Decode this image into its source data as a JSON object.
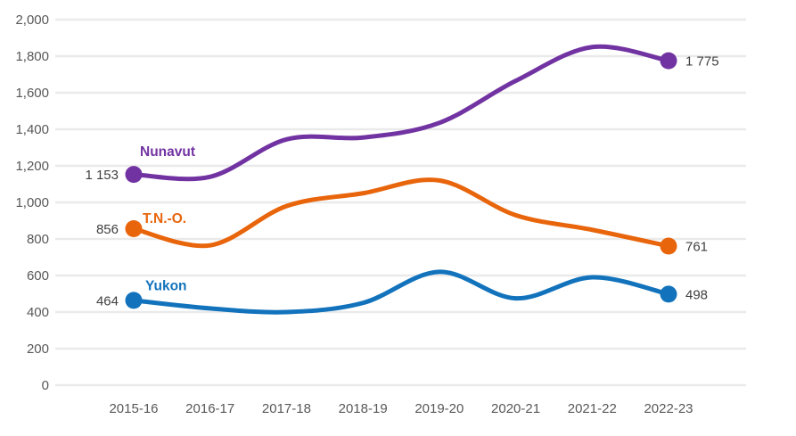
{
  "chart_data": {
    "type": "line",
    "title": "",
    "xlabel": "",
    "ylabel": "",
    "x_categories": [
      "2015-16",
      "2016-17",
      "2017-18",
      "2018-19",
      "2019-20",
      "2020-21",
      "2021-22",
      "2022-23"
    ],
    "ylim": [
      0,
      2000
    ],
    "y_ticks": [
      {
        "value": 0,
        "label": "0"
      },
      {
        "value": 200,
        "label": "200"
      },
      {
        "value": 400,
        "label": "400"
      },
      {
        "value": 600,
        "label": "600"
      },
      {
        "value": 800,
        "label": "800"
      },
      {
        "value": 1000,
        "label": "1,000"
      },
      {
        "value": 1200,
        "label": "1,200"
      },
      {
        "value": 1400,
        "label": "1,400"
      },
      {
        "value": 1600,
        "label": "1,600"
      },
      {
        "value": 1800,
        "label": "1,800"
      },
      {
        "value": 2000,
        "label": "2,000"
      }
    ],
    "grid": true,
    "legend_position": "inline-series-name-labels",
    "series": [
      {
        "name": "Nunavut",
        "color": "#7233A2",
        "values": [
          1153,
          1140,
          1345,
          1355,
          1435,
          1665,
          1850,
          1775
        ],
        "first_value_label": "1 153",
        "last_value_label": "1 775",
        "name_dx": 7,
        "name_dy": -26
      },
      {
        "name": "T.N.-O.",
        "color": "#E8650C",
        "values": [
          856,
          765,
          980,
          1050,
          1120,
          930,
          850,
          761
        ],
        "first_value_label": "856",
        "last_value_label": "761",
        "name_dx": 10,
        "name_dy": -12
      },
      {
        "name": "Yukon",
        "color": "#1273BC",
        "values": [
          464,
          420,
          400,
          450,
          620,
          475,
          590,
          498
        ],
        "first_value_label": "464",
        "last_value_label": "498",
        "name_dx": 13,
        "name_dy": -17
      }
    ],
    "colors": {
      "gridline": "#EAEAEA",
      "axis_tick_text": "#58585A",
      "value_label_text": "#3F3F3F",
      "background": "#FFFFFF"
    }
  }
}
